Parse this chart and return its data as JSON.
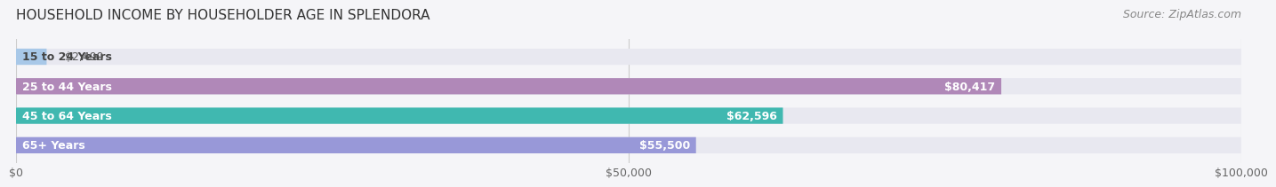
{
  "title": "HOUSEHOLD INCOME BY HOUSEHOLDER AGE IN SPLENDORA",
  "source": "Source: ZipAtlas.com",
  "categories": [
    "15 to 24 Years",
    "25 to 44 Years",
    "45 to 64 Years",
    "65+ Years"
  ],
  "values": [
    2499,
    80417,
    62596,
    55500
  ],
  "bar_colors": [
    "#a8c8e8",
    "#b088b8",
    "#40b8b0",
    "#9898d8"
  ],
  "bar_bg_color": "#e8e8f0",
  "xlim": [
    0,
    100000
  ],
  "xticks": [
    0,
    50000,
    100000
  ],
  "xtick_labels": [
    "$0",
    "$50,000",
    "$100,000"
  ],
  "title_fontsize": 11,
  "source_fontsize": 9,
  "label_fontsize": 9,
  "value_fontsize": 9,
  "bar_height": 0.55,
  "background_color": "#f5f5f8"
}
